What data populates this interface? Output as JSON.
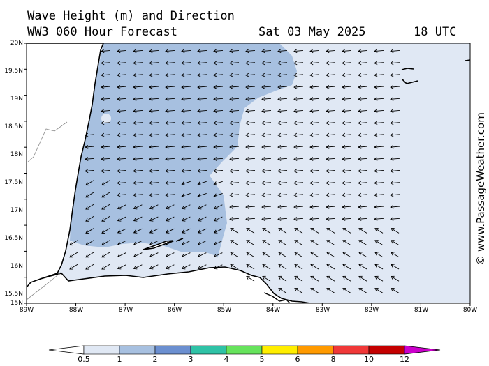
{
  "header": {
    "title_line1": "Wave Height (m) and Direction",
    "title_line2": "WW3 060 Hour Forecast",
    "date": "Sat 03 May 2025",
    "time": "18 UTC"
  },
  "watermark": "© www.PassageWeather.com",
  "map": {
    "lat_labels": [
      "20N",
      "19.5N",
      "19N",
      "18.5N",
      "18N",
      "17.5N",
      "17N",
      "16.5N",
      "16N",
      "15.5N",
      "15N"
    ],
    "lon_labels": [
      "89W",
      "88W",
      "87W",
      "86W",
      "85W",
      "84W",
      "83W",
      "82W",
      "81W",
      "80W"
    ],
    "colors": {
      "land": "#ffffff",
      "band_0_5_1": "#e0e8f4",
      "band_1_2": "#a7c0e0",
      "coastline": "#000000",
      "arrow": "#000000"
    }
  },
  "colorbar": {
    "labels": [
      "0.5",
      "1",
      "2",
      "3",
      "4",
      "5",
      "6",
      "8",
      "10",
      "12"
    ],
    "colors": [
      "#ffffff",
      "#e0e8f4",
      "#a7c0e0",
      "#6b8fd0",
      "#2fc2a6",
      "#66e35c",
      "#ffee00",
      "#ff9a00",
      "#f03838",
      "#c40000",
      "#cc00cc"
    ]
  }
}
